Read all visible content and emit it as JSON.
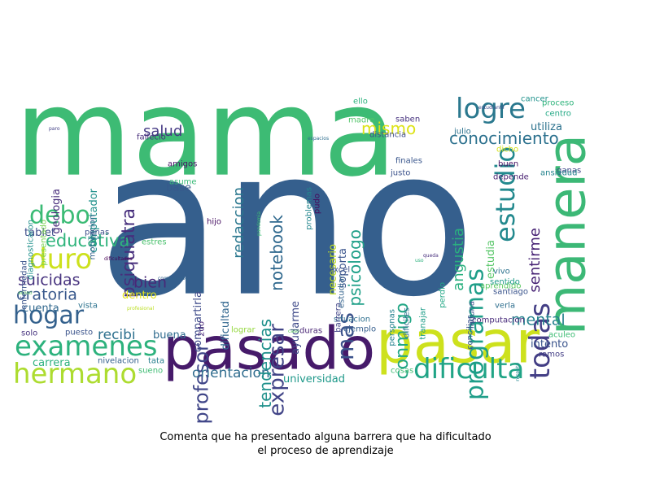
{
  "caption": {
    "line1": "Comenta que ha presentado alguna barrera que ha dificultado",
    "line2": "el proceso de aprendizaje"
  },
  "words": [
    {
      "text": "mama",
      "color": "#3dbb74"
    },
    {
      "text": "ano",
      "color": "#355f8d"
    },
    {
      "text": "pasado",
      "color": "#461a6a"
    },
    {
      "text": "pasar",
      "color": "#cde11d"
    },
    {
      "text": "manera",
      "color": "#3cb876"
    },
    {
      "text": "dificulta",
      "color": "#20a486"
    },
    {
      "text": "hermano",
      "color": "#addc30"
    },
    {
      "text": "examenes",
      "color": "#2db27d"
    },
    {
      "text": "hogar",
      "color": "#34618d"
    },
    {
      "text": "duro",
      "color": "#cde11d"
    },
    {
      "text": "debo",
      "color": "#3bbb75"
    },
    {
      "text": "logre",
      "color": "#2a788e"
    },
    {
      "text": "educativa",
      "color": "#2fb47c"
    },
    {
      "text": "todas",
      "color": "#433e85"
    },
    {
      "text": "estudio",
      "color": "#23898e"
    },
    {
      "text": "programas",
      "color": "#1f9e89"
    },
    {
      "text": "conocimiento",
      "color": "#2c718e"
    },
    {
      "text": "mas",
      "color": "#3b528b"
    },
    {
      "text": "expresar",
      "color": "#414487"
    },
    {
      "text": "profesor",
      "color": "#404688"
    },
    {
      "text": "orientacion",
      "color": "#2f6c8e"
    },
    {
      "text": "psiquiatra",
      "color": "#472f7d"
    },
    {
      "text": "oratoria",
      "color": "#38588c"
    },
    {
      "text": "suicidas",
      "color": "#46327e"
    },
    {
      "text": "mental",
      "color": "#26828e"
    },
    {
      "text": "bien",
      "color": "#482878"
    },
    {
      "text": "recibi",
      "color": "#2d708e"
    },
    {
      "text": "conmigo",
      "color": "#22a785"
    },
    {
      "text": "tendencias",
      "color": "#21918c"
    },
    {
      "text": "psicologo",
      "color": "#1fa088"
    },
    {
      "text": "notebook",
      "color": "#30698e"
    },
    {
      "text": "redaccion",
      "color": "#2a778e"
    },
    {
      "text": "salud",
      "color": "#443983"
    },
    {
      "text": "mismo",
      "color": "#dde318"
    },
    {
      "text": "angustia",
      "color": "#2ab07f"
    },
    {
      "text": "sentirme",
      "color": "#482475"
    },
    {
      "text": "estudia",
      "color": "#56c667"
    },
    {
      "text": "utiliza",
      "color": "#2c728e"
    },
    {
      "text": "universidad",
      "color": "#1f998a"
    },
    {
      "text": "intento",
      "color": "#3a548c"
    },
    {
      "text": "ayudarme",
      "color": "#3e4989"
    },
    {
      "text": "compartirla",
      "color": "#3e4a89"
    },
    {
      "text": "dificultad",
      "color": "#31668e"
    },
    {
      "text": "computador",
      "color": "#21918c"
    },
    {
      "text": "geologia",
      "color": "#472c7a"
    },
    {
      "text": "cuenta",
      "color": "#31688e"
    },
    {
      "text": "dentro",
      "color": "#e5e419"
    },
    {
      "text": "buena",
      "color": "#2f6b8e"
    },
    {
      "text": "tablet",
      "color": "#3d4d8a"
    },
    {
      "text": "necesario",
      "color": "#c2df23"
    },
    {
      "text": "soporta",
      "color": "#3a548c"
    },
    {
      "text": "base",
      "color": "#375a8c"
    },
    {
      "text": "fallecio",
      "color": "#472d7b"
    },
    {
      "text": "amigos",
      "color": "#471365"
    },
    {
      "text": "asume",
      "color": "#38b977"
    },
    {
      "text": "carrera",
      "color": "#2cb17e"
    },
    {
      "text": "nivelacion",
      "color": "#34608d"
    },
    {
      "text": "tata",
      "color": "#277f8e"
    },
    {
      "text": "sueno",
      "color": "#3fbc73"
    },
    {
      "text": "vista",
      "color": "#2c728e"
    },
    {
      "text": "solo",
      "color": "#46327e"
    },
    {
      "text": "puesto",
      "color": "#3a538b"
    },
    {
      "text": "2do",
      "color": "#482677"
    },
    {
      "text": "lograr",
      "color": "#95d840"
    },
    {
      "text": "duras",
      "color": "#482374"
    },
    {
      "text": "situacion",
      "color": "#2e6f8e"
    },
    {
      "text": "ejemplo",
      "color": "#355e8d"
    },
    {
      "text": "cosas",
      "color": "#3fbc73"
    },
    {
      "text": "computacion",
      "color": "#472a7a"
    },
    {
      "text": "conciliar",
      "color": "#3b528b"
    },
    {
      "text": "aculeo",
      "color": "#3dbc74"
    },
    {
      "text": "ramos",
      "color": "#433e85"
    },
    {
      "text": "verla",
      "color": "#2e6e8e"
    },
    {
      "text": "santiago",
      "color": "#3a548c"
    },
    {
      "text": "aprendido",
      "color": "#5ec962"
    },
    {
      "text": "vivo",
      "color": "#2c728e"
    },
    {
      "text": "sentido",
      "color": "#1f9a8a"
    },
    {
      "text": "depende",
      "color": "#482071"
    },
    {
      "text": "buen",
      "color": "#471164"
    },
    {
      "text": "dicho",
      "color": "#d5e21a"
    },
    {
      "text": "julio",
      "color": "#2c718e"
    },
    {
      "text": "saben",
      "color": "#46327e"
    },
    {
      "text": "madre",
      "color": "#52c569"
    },
    {
      "text": "distancia",
      "color": "#3e4c8a"
    },
    {
      "text": "finales",
      "color": "#39568c"
    },
    {
      "text": "justo",
      "color": "#3b528b"
    },
    {
      "text": "ello",
      "color": "#2db27d"
    },
    {
      "text": "cancer",
      "color": "#20928c"
    },
    {
      "text": "proceso",
      "color": "#2fb47c"
    },
    {
      "text": "centro",
      "color": "#22a884"
    },
    {
      "text": "ganas",
      "color": "#414487"
    },
    {
      "text": "ansiedad",
      "color": "#25848e"
    },
    {
      "text": "excel",
      "color": "#3b528b"
    },
    {
      "text": "dificiles",
      "color": "#2e6e8e"
    },
    {
      "text": "tranajar",
      "color": "#1f9e89"
    },
    {
      "text": "laguna",
      "color": "#3a538b"
    },
    {
      "text": "personas",
      "color": "#26828e"
    },
    {
      "text": "perdio",
      "color": "#22a785"
    },
    {
      "text": "uso",
      "color": "#2cb17e"
    },
    {
      "text": "barrera",
      "color": "#414487"
    },
    {
      "text": "estudiar",
      "color": "#33638d"
    },
    {
      "text": "problemas",
      "color": "#24868e"
    },
    {
      "text": "pudo",
      "color": "#46075a"
    },
    {
      "text": "espacios",
      "color": "#2e6e8e"
    },
    {
      "text": "paro",
      "color": "#424086"
    },
    {
      "text": "diagnosticaron",
      "color": "#21918c"
    },
    {
      "text": "presentado",
      "color": "#7ad151"
    },
    {
      "text": "motivacion",
      "color": "#33628d"
    },
    {
      "text": "enfermedad",
      "color": "#3a538b"
    },
    {
      "text": "penas",
      "color": "#3c4f8a"
    },
    {
      "text": "pasar",
      "color": "#2a788e"
    },
    {
      "text": "hijo",
      "color": "#471063"
    },
    {
      "text": "estres",
      "color": "#4ac16d"
    },
    {
      "text": "dificultades",
      "color": "#440154"
    },
    {
      "text": "companeros",
      "color": "#33638d"
    },
    {
      "text": "acoso",
      "color": "#5ec962"
    },
    {
      "text": "profesional",
      "color": "#bddf26"
    },
    {
      "text": "respeto",
      "color": "#24878e"
    },
    {
      "text": "estudiantil",
      "color": "#3e4c8a"
    },
    {
      "text": "pandemia",
      "color": "#3dbc74"
    },
    {
      "text": "caso",
      "color": "#5ec962"
    },
    {
      "text": "queda",
      "color": "#472f7d"
    }
  ]
}
